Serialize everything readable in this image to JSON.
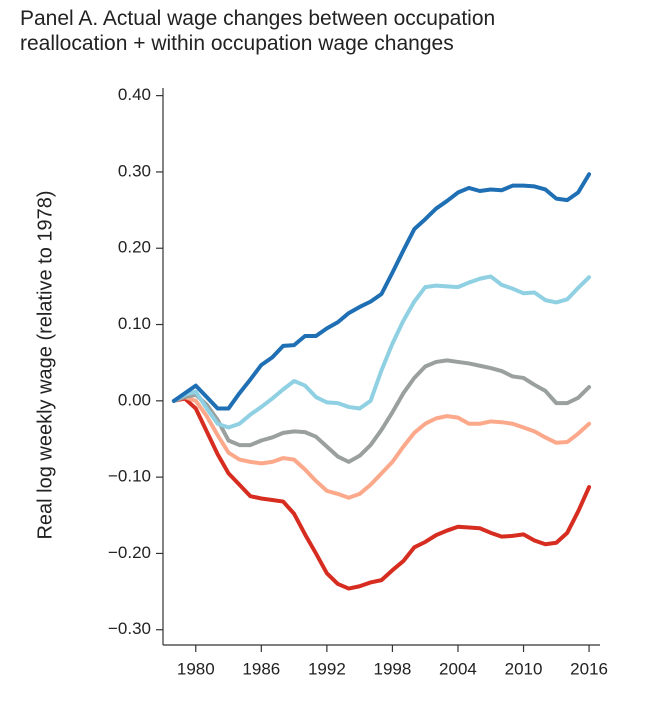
{
  "chart_data": {
    "type": "line",
    "title": "Panel A. Actual wage changes between occupation reallocation + within occupation wage changes",
    "y_label": "Real log weekly wage (relative to 1978)",
    "x": [
      1978,
      1979,
      1980,
      1981,
      1982,
      1983,
      1984,
      1985,
      1986,
      1987,
      1988,
      1989,
      1990,
      1991,
      1992,
      1993,
      1994,
      1995,
      1996,
      1997,
      1998,
      1999,
      2000,
      2001,
      2002,
      2003,
      2004,
      2005,
      2006,
      2007,
      2008,
      2009,
      2010,
      2011,
      2012,
      2013,
      2014,
      2015,
      2016
    ],
    "xlim": [
      1977,
      2017
    ],
    "xticks": [
      1980,
      1986,
      1992,
      1998,
      2004,
      2010,
      2016
    ],
    "ylim": [
      -0.32,
      0.41
    ],
    "yticks": [
      {
        "value": 0.4,
        "label": "0.40"
      },
      {
        "value": 0.3,
        "label": "0.30"
      },
      {
        "value": 0.2,
        "label": "0.20"
      },
      {
        "value": 0.1,
        "label": "0.10"
      },
      {
        "value": 0,
        "label": "0.00"
      },
      {
        "value": -0.1,
        "label": "−0.10"
      },
      {
        "value": -0.2,
        "label": "−0.20"
      },
      {
        "value": -0.3,
        "label": "−0.30"
      }
    ],
    "grid": false,
    "series": [
      {
        "color": "#d62d20",
        "values": [
          0,
          0.003,
          -0.01,
          -0.04,
          -0.07,
          -0.095,
          -0.11,
          -0.125,
          -0.128,
          -0.13,
          -0.132,
          -0.148,
          -0.175,
          -0.2,
          -0.226,
          -0.24,
          -0.246,
          -0.243,
          -0.238,
          -0.235,
          -0.222,
          -0.21,
          -0.192,
          -0.185,
          -0.176,
          -0.17,
          -0.165,
          -0.166,
          -0.167,
          -0.173,
          -0.178,
          -0.177,
          -0.175,
          -0.183,
          -0.188,
          -0.186,
          -0.173,
          -0.145,
          -0.113
        ]
      },
      {
        "color": "#fca88a",
        "values": [
          0,
          0.005,
          0,
          -0.02,
          -0.045,
          -0.068,
          -0.077,
          -0.08,
          -0.082,
          -0.08,
          -0.075,
          -0.077,
          -0.09,
          -0.105,
          -0.118,
          -0.122,
          -0.127,
          -0.122,
          -0.11,
          -0.095,
          -0.08,
          -0.06,
          -0.042,
          -0.03,
          -0.023,
          -0.02,
          -0.022,
          -0.03,
          -0.03,
          -0.027,
          -0.028,
          -0.03,
          -0.035,
          -0.04,
          -0.048,
          -0.055,
          -0.054,
          -0.043,
          -0.03
        ]
      },
      {
        "color": "#9aa09e",
        "values": [
          0,
          0.005,
          0.008,
          -0.005,
          -0.025,
          -0.052,
          -0.058,
          -0.058,
          -0.052,
          -0.048,
          -0.042,
          -0.04,
          -0.041,
          -0.047,
          -0.06,
          -0.073,
          -0.08,
          -0.072,
          -0.058,
          -0.038,
          -0.015,
          0.01,
          0.03,
          0.045,
          0.051,
          0.053,
          0.051,
          0.049,
          0.046,
          0.043,
          0.039,
          0.032,
          0.03,
          0.021,
          0.013,
          -0.003,
          -0.003,
          0.004,
          0.018
        ]
      },
      {
        "color": "#8fd0e3",
        "values": [
          0,
          0.008,
          0.012,
          -0.01,
          -0.03,
          -0.035,
          -0.03,
          -0.018,
          -0.008,
          0.003,
          0.015,
          0.026,
          0.02,
          0.005,
          -0.002,
          -0.003,
          -0.008,
          -0.01,
          0,
          0.04,
          0.075,
          0.105,
          0.13,
          0.149,
          0.151,
          0.15,
          0.149,
          0.155,
          0.16,
          0.163,
          0.152,
          0.147,
          0.141,
          0.142,
          0.132,
          0.129,
          0.133,
          0.148,
          0.162
        ]
      },
      {
        "color": "#1f6fb4",
        "values": [
          0,
          0.01,
          0.02,
          0.005,
          -0.01,
          -0.01,
          0.01,
          0.028,
          0.047,
          0.057,
          0.072,
          0.073,
          0.085,
          0.085,
          0.095,
          0.103,
          0.115,
          0.123,
          0.13,
          0.14,
          0.168,
          0.197,
          0.225,
          0.238,
          0.252,
          0.262,
          0.273,
          0.279,
          0.275,
          0.277,
          0.276,
          0.282,
          0.282,
          0.281,
          0.277,
          0.265,
          0.263,
          0.273,
          0.297
        ]
      }
    ]
  }
}
